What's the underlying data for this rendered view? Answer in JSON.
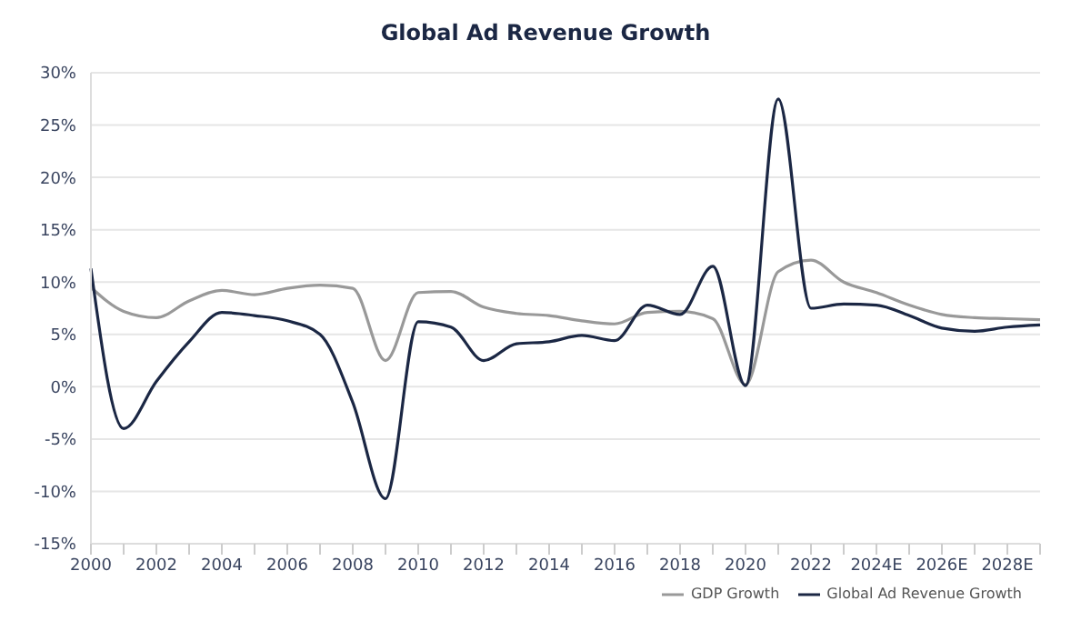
{
  "chart_data": {
    "type": "line",
    "title": "Global Ad Revenue Growth",
    "categories": [
      "2000",
      null,
      "2002",
      null,
      "2004",
      null,
      "2006",
      null,
      "2008",
      null,
      "2010",
      null,
      "2012",
      null,
      "2014",
      null,
      "2016",
      null,
      "2018",
      null,
      "2020",
      null,
      "2022",
      null,
      "2024E",
      null,
      "2026E",
      null,
      "2028E",
      null
    ],
    "series": [
      {
        "name": "GDP Growth",
        "color": "#999999",
        "values": [
          9.5,
          7.2,
          6.6,
          8.2,
          9.2,
          8.8,
          9.4,
          9.7,
          9.4,
          2.5,
          9.0,
          9.1,
          7.6,
          7.0,
          6.8,
          6.3,
          6.0,
          7.1,
          7.2,
          6.5,
          0.2,
          11.0,
          12.1,
          10.0,
          9.0,
          7.8,
          6.9,
          6.6,
          6.5,
          6.4
        ]
      },
      {
        "name": "Global Ad Revenue Growth",
        "color": "#1b2744",
        "values": [
          11.3,
          -4.0,
          0.5,
          4.3,
          7.1,
          6.8,
          6.3,
          5.0,
          -1.5,
          -10.7,
          6.2,
          5.7,
          2.5,
          4.1,
          4.3,
          4.9,
          4.4,
          7.8,
          6.9,
          11.5,
          0.1,
          27.5,
          7.5,
          7.9,
          7.8,
          6.8,
          5.6,
          5.3,
          5.7,
          5.9
        ]
      }
    ],
    "ylim": [
      -15,
      30
    ],
    "yticks": [
      {
        "value": -15,
        "label": "-15%"
      },
      {
        "value": -10,
        "label": "-10%"
      },
      {
        "value": -5,
        "label": "-5%"
      },
      {
        "value": 0,
        "label": "0%"
      },
      {
        "value": 5,
        "label": "5%"
      },
      {
        "value": 10,
        "label": "10%"
      },
      {
        "value": 15,
        "label": "15%"
      },
      {
        "value": 20,
        "label": "20%"
      },
      {
        "value": 25,
        "label": "25%"
      },
      {
        "value": 30,
        "label": "30%"
      }
    ],
    "grid": "y",
    "legend": "bottom right",
    "marker": "none",
    "line_style": "solid"
  }
}
